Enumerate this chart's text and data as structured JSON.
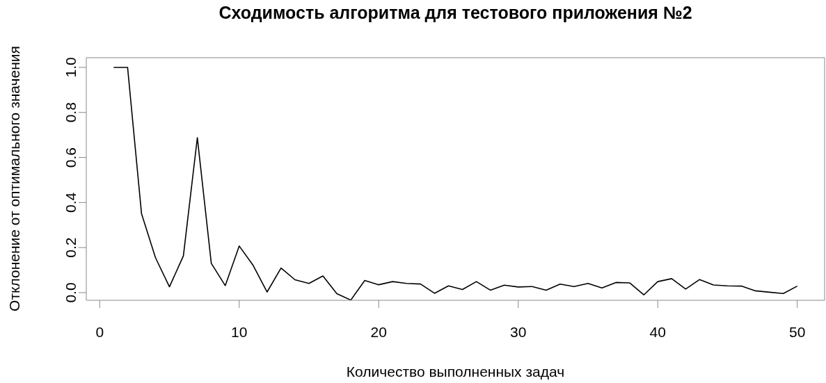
{
  "chart_data": {
    "type": "line",
    "title": "Сходимость алгоритма для тестового приложения №2",
    "xlabel": "Количество выполненных задач",
    "ylabel": "Отклонение от оптимального значения",
    "x": [
      1,
      2,
      3,
      4,
      5,
      6,
      7,
      8,
      9,
      10,
      11,
      12,
      13,
      14,
      15,
      16,
      17,
      18,
      19,
      20,
      21,
      22,
      23,
      24,
      25,
      26,
      27,
      28,
      29,
      30,
      31,
      32,
      33,
      34,
      35,
      36,
      37,
      38,
      39,
      40,
      41,
      42,
      43,
      44,
      45,
      46,
      47,
      48,
      49,
      50
    ],
    "series": [
      {
        "color": "#000000",
        "values": [
          1.0,
          1.0,
          0.35,
          0.155,
          0.026,
          0.163,
          0.688,
          0.13,
          0.031,
          0.207,
          0.121,
          0.003,
          0.109,
          0.057,
          0.041,
          0.074,
          -0.005,
          -0.033,
          0.054,
          0.035,
          0.049,
          0.041,
          0.038,
          -0.003,
          0.03,
          0.014,
          0.049,
          0.011,
          0.033,
          0.025,
          0.027,
          0.011,
          0.038,
          0.027,
          0.041,
          0.021,
          0.045,
          0.043,
          -0.01,
          0.049,
          0.062,
          0.016,
          0.058,
          0.034,
          0.03,
          0.029,
          0.008,
          0.002,
          -0.004,
          0.029
        ]
      }
    ],
    "xlim": [
      -0.96,
      51.96
    ],
    "ylim": [
      -0.034,
      1.043
    ],
    "xticks": [
      0,
      10,
      20,
      30,
      40,
      50
    ],
    "yticks": [
      {
        "value": 0,
        "label": "0.0"
      },
      0.2,
      0.4,
      0.6,
      0.8,
      {
        "value": 1,
        "label": "1.0"
      }
    ],
    "grid": false,
    "legend": false,
    "marker": "none",
    "line_style": "solid"
  }
}
